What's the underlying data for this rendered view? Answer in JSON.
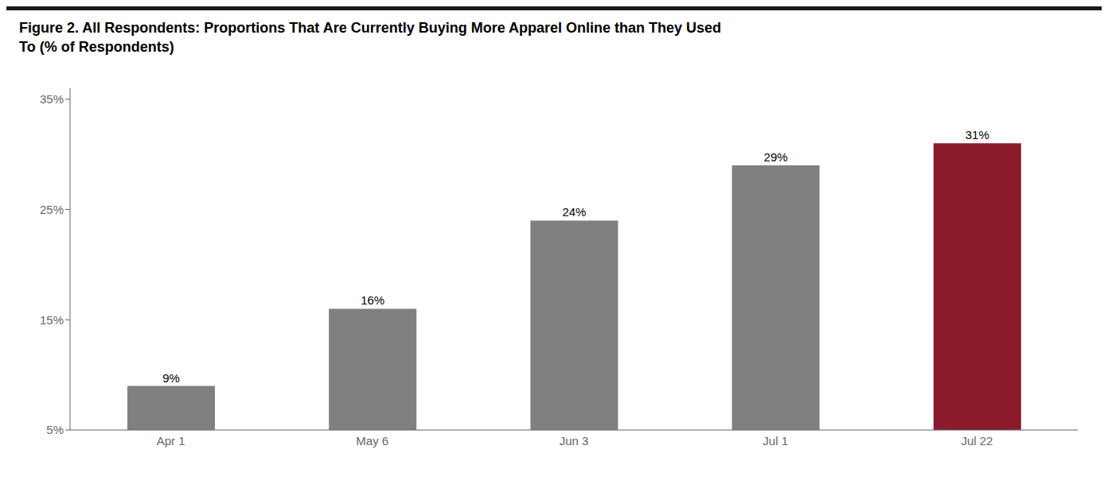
{
  "chart_data": {
    "type": "bar",
    "title": "Figure 2. All Respondents: Proportions That Are Currently Buying More Apparel Online than They Used\nTo (% of Respondents)",
    "categories": [
      "Apr 1",
      "May 6",
      "Jun 3",
      "Jul 1",
      "Jul 22"
    ],
    "values": [
      9,
      16,
      24,
      29,
      31
    ],
    "value_labels": [
      "9%",
      "16%",
      "24%",
      "29%",
      "31%"
    ],
    "data_labels": true,
    "colors": [
      "#808080",
      "#808080",
      "#808080",
      "#808080",
      "#8B1A2B"
    ],
    "ylim": [
      5,
      36
    ],
    "yticks": [
      {
        "value": 5,
        "label": "5%"
      },
      {
        "value": 15,
        "label": "15%"
      },
      {
        "value": 25,
        "label": "25%"
      },
      {
        "value": 35,
        "label": "35%"
      }
    ],
    "grid": false
  }
}
